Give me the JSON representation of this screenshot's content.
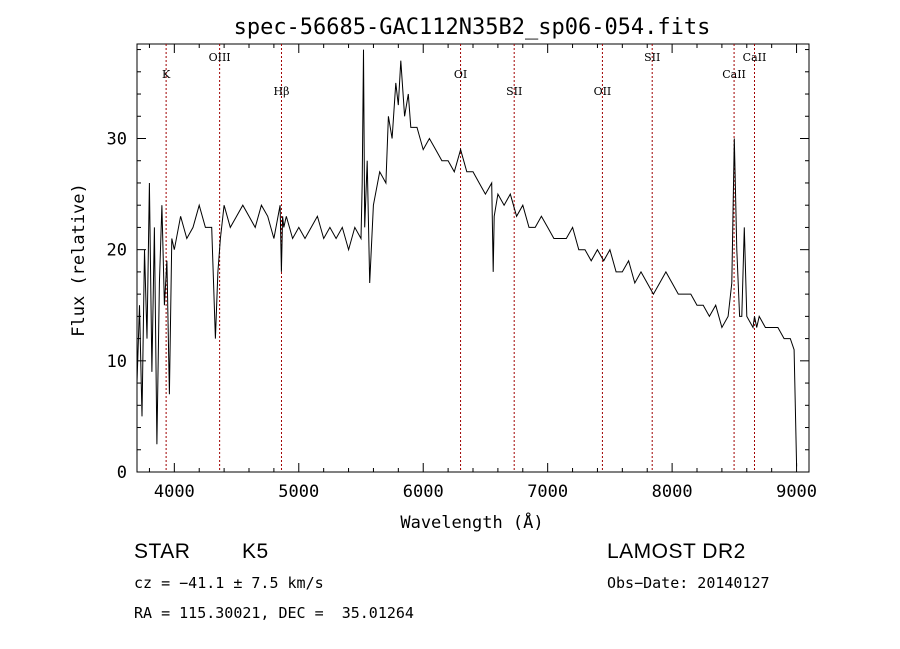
{
  "chart_data": {
    "type": "line",
    "title": "spec-56685-GAC112N35B2_sp06-054.fits",
    "xlabel": "Wavelength (Å)",
    "ylabel": "Flux (relative)",
    "xlim": [
      3700,
      9100
    ],
    "ylim": [
      0,
      38.5
    ],
    "x_ticks": [
      4000,
      5000,
      6000,
      7000,
      8000,
      9000
    ],
    "y_ticks": [
      0,
      10,
      20,
      30
    ],
    "grid": false,
    "series": [
      {
        "x": [
          3700,
          3720,
          3740,
          3760,
          3780,
          3800,
          3820,
          3840,
          3860,
          3880,
          3900,
          3920,
          3940,
          3960,
          3980,
          4000,
          4050,
          4100,
          4150,
          4200,
          4250,
          4300,
          4330,
          4350,
          4370,
          4400,
          4450,
          4500,
          4550,
          4600,
          4650,
          4700,
          4750,
          4800,
          4850,
          4860,
          4870,
          4880,
          4900,
          4950,
          5000,
          5050,
          5100,
          5150,
          5200,
          5250,
          5300,
          5350,
          5400,
          5450,
          5500,
          5510,
          5520,
          5530,
          5550,
          5570,
          5600,
          5650,
          5700,
          5720,
          5750,
          5780,
          5800,
          5820,
          5850,
          5880,
          5900,
          5950,
          6000,
          6050,
          6100,
          6150,
          6200,
          6250,
          6300,
          6350,
          6400,
          6450,
          6500,
          6550,
          6562,
          6570,
          6600,
          6650,
          6700,
          6750,
          6800,
          6850,
          6900,
          6950,
          7000,
          7050,
          7100,
          7150,
          7200,
          7250,
          7300,
          7350,
          7400,
          7450,
          7500,
          7550,
          7600,
          7650,
          7700,
          7750,
          7800,
          7850,
          7900,
          7950,
          8000,
          8050,
          8100,
          8150,
          8200,
          8250,
          8300,
          8350,
          8400,
          8450,
          8480,
          8500,
          8520,
          8542,
          8560,
          8580,
          8600,
          8650,
          8662,
          8680,
          8700,
          8750,
          8800,
          8850,
          8900,
          8950,
          8980,
          9000
        ],
        "values": [
          8,
          15,
          5,
          20,
          12,
          26,
          9,
          22,
          2.5,
          17,
          24,
          15,
          19,
          7,
          21,
          20,
          23,
          21,
          22,
          24,
          22,
          22,
          12,
          18,
          21,
          24,
          22,
          23,
          24,
          23,
          22,
          24,
          23,
          21,
          24,
          18,
          23,
          22,
          23,
          21,
          22,
          21,
          22,
          23,
          21,
          22,
          21,
          22,
          20,
          22,
          21,
          26,
          38,
          22,
          28,
          17,
          24,
          27,
          26,
          32,
          30,
          35,
          33,
          37,
          32,
          34,
          31,
          31,
          29,
          30,
          29,
          28,
          28,
          27,
          29,
          27,
          27,
          26,
          25,
          26,
          18,
          23,
          25,
          24,
          25,
          23,
          24,
          22,
          22,
          23,
          22,
          21,
          21,
          21,
          22,
          20,
          20,
          19,
          20,
          19,
          20,
          18,
          18,
          19,
          17,
          18,
          17,
          16,
          17,
          18,
          17,
          16,
          16,
          16,
          15,
          15,
          14,
          15,
          13,
          14,
          17,
          30,
          20,
          14,
          14,
          22,
          14,
          13,
          14,
          13,
          14,
          13,
          13,
          13,
          12,
          12,
          11,
          0.5
        ]
      }
    ],
    "lines": [
      {
        "label": "K",
        "x": 3934,
        "level": "low"
      },
      {
        "label": "OIII",
        "x": 4364,
        "level": "high"
      },
      {
        "label": "Hβ",
        "x": 4861,
        "level": "mid"
      },
      {
        "label": "OI",
        "x": 6300,
        "level": "low"
      },
      {
        "label": "SII",
        "x": 6731,
        "level": "mid"
      },
      {
        "label": "OII",
        "x": 7440,
        "level": "mid"
      },
      {
        "label": "SII",
        "x": 7840,
        "level": "high"
      },
      {
        "label": "CaII",
        "x": 8498,
        "level": "low"
      },
      {
        "label": "CaII",
        "x": 8662,
        "level": "high"
      }
    ],
    "line_color": "#a00000"
  },
  "info": {
    "object_type": "STAR",
    "subclass": "K5",
    "survey": "LAMOST DR2",
    "velocity": "cz = −41.1 ± 7.5 km/s",
    "obs_date": "Obs−Date: 20140127",
    "coords": "RA = 115.30021, DEC =  35.01264"
  }
}
